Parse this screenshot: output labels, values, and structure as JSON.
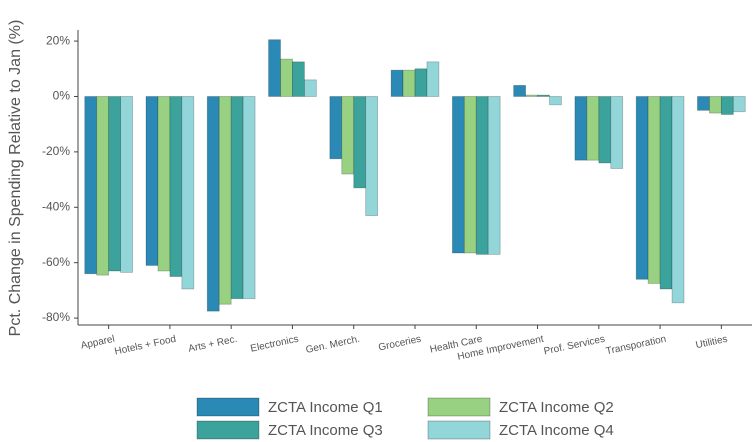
{
  "chart_data": {
    "type": "bar",
    "y_label": "Pct. Change in Spending Relative to Jan (%)",
    "categories": [
      "Apparel",
      "Hotels + Food",
      "Arts + Rec.",
      "Electronics",
      "Gen. Merch.",
      "Groceries",
      "Health Care",
      "Home Improvement",
      "Prof. Services",
      "Transporation",
      "Utilities"
    ],
    "series": [
      {
        "name": "ZCTA Income Q1",
        "color": "#2b8ab5",
        "values": [
          -64,
          -61,
          -77.5,
          20.5,
          -22.5,
          9.5,
          -56.5,
          4,
          -23,
          -66,
          -5
        ]
      },
      {
        "name": "ZCTA Income Q2",
        "color": "#98d182",
        "values": [
          -64.5,
          -63,
          -75,
          13.5,
          -28,
          9.5,
          -56.5,
          0.5,
          -23,
          -67.5,
          -6
        ]
      },
      {
        "name": "ZCTA Income Q3",
        "color": "#3ba39b",
        "values": [
          -63,
          -65,
          -73,
          12.5,
          -33,
          10,
          -57,
          0.5,
          -24,
          -69.5,
          -6.5
        ]
      },
      {
        "name": "ZCTA Income Q4",
        "color": "#93d6d9",
        "values": [
          -63.5,
          -69.5,
          -73,
          6,
          -43,
          12.5,
          -57,
          -3,
          -26,
          -74.5,
          -5.5
        ]
      }
    ],
    "ylim": [
      -82.5,
      24
    ],
    "yticks": [
      {
        "value": 20,
        "label": "20%"
      },
      {
        "value": 0,
        "label": "0%"
      },
      {
        "value": -20,
        "label": "-20%"
      },
      {
        "value": -40,
        "label": "-40%"
      },
      {
        "value": -60,
        "label": "-60%"
      },
      {
        "value": -80,
        "label": "-80%"
      }
    ]
  }
}
